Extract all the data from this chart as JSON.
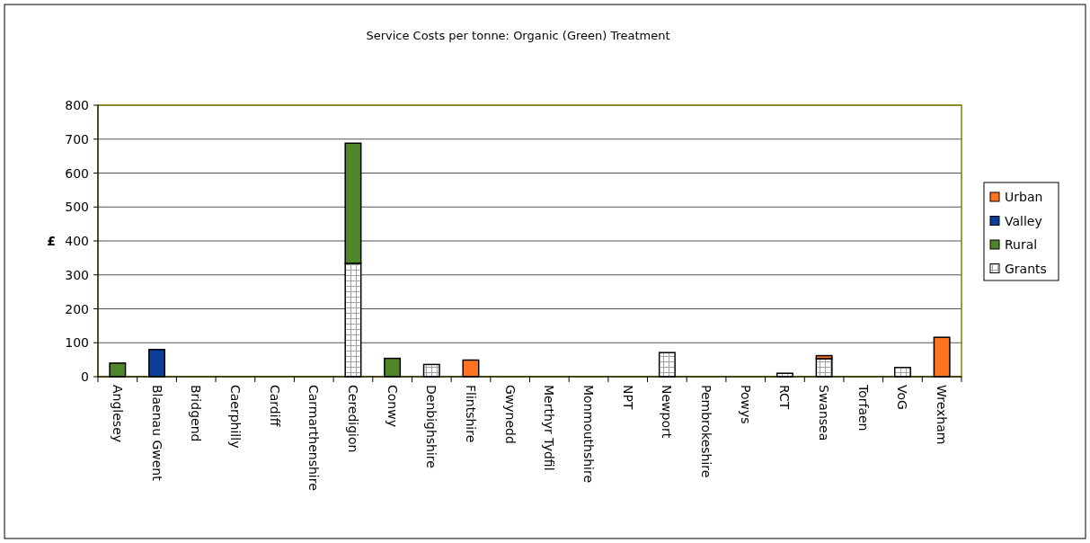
{
  "chart_data": {
    "type": "bar",
    "title": "Service Costs per tonne: Organic (Green) Treatment",
    "ylabel": "£",
    "stacked": true,
    "legend": "right",
    "grid": "y",
    "categories": [
      "Anglesey",
      "Blaenau Gwent",
      "Bridgend",
      "Caerphilly",
      "Cardiff",
      "Carmarthenshire",
      "Ceredigion",
      "Conwy",
      "Denbighshire",
      "Flintshire",
      "Gwynedd",
      "Merthyr Tydfil",
      "Monmouthshire",
      "NPT",
      "Newport",
      "Pembrokeshire",
      "Powys",
      "RCT",
      "Swansea",
      "Torfaen",
      "VoG",
      "Wrexham"
    ],
    "ylim": [
      0,
      800
    ],
    "yticks": [
      0,
      100,
      200,
      300,
      400,
      500,
      600,
      700,
      800
    ],
    "series": [
      {
        "name": "Grants",
        "color": "#ffffff",
        "values": [
          null,
          null,
          null,
          null,
          null,
          null,
          334,
          null,
          36,
          null,
          null,
          null,
          null,
          null,
          71,
          null,
          null,
          10,
          53,
          null,
          27,
          null
        ]
      },
      {
        "name": "Rural",
        "color": "#4f8629",
        "values": [
          40,
          null,
          null,
          null,
          null,
          null,
          354,
          54,
          null,
          null,
          null,
          null,
          null,
          null,
          null,
          null,
          null,
          null,
          null,
          null,
          null,
          null
        ]
      },
      {
        "name": "Valley",
        "color": "#0b3f9a",
        "values": [
          null,
          80,
          null,
          null,
          null,
          null,
          null,
          null,
          null,
          null,
          null,
          null,
          null,
          null,
          null,
          null,
          null,
          null,
          null,
          null,
          null,
          null
        ]
      },
      {
        "name": "Urban",
        "color": "#ff7420",
        "values": [
          null,
          null,
          null,
          null,
          null,
          null,
          null,
          null,
          null,
          49,
          null,
          null,
          null,
          null,
          null,
          null,
          null,
          null,
          9,
          null,
          null,
          116
        ]
      }
    ]
  }
}
